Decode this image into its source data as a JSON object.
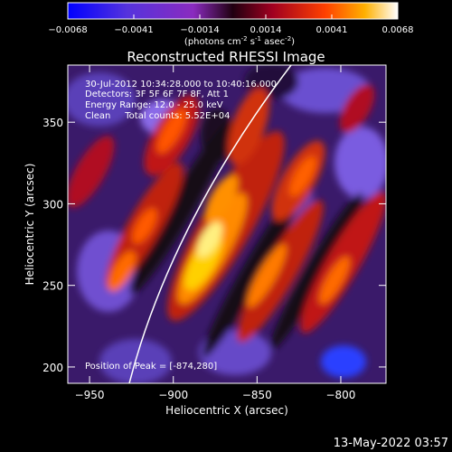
{
  "colorbar": {
    "ticks": [
      "-0.0068",
      "-0.0041",
      "-0.0014",
      "0.0014",
      "0.0041",
      "0.0068"
    ],
    "units_text": "(photons cm",
    "units_exp1": "-2",
    "units_mid": " s",
    "units_exp2": "-1",
    "units_end": " asec",
    "units_exp3": "-2",
    "units_close": ")"
  },
  "title": "Reconstructed RHESSI Image",
  "info": {
    "time_range": "30-Jul-2012 10:34:28.000 to 10:40:16.000",
    "detectors": "Detectors: 3F 5F 6F 7F 8F, Att 1",
    "energy": "Energy Range: 12.0 - 25.0 keV",
    "clean": "Clean     Total counts: 5.52E+04",
    "peak": "Position of Peak = [-874,280]"
  },
  "axes": {
    "xlabel": "Heliocentric X (arcsec)",
    "ylabel": "Heliocentric Y (arcsec)",
    "xticks": [
      -950,
      -900,
      -850,
      -800
    ],
    "yticks": [
      200,
      250,
      300,
      350
    ],
    "xrange": [
      -963,
      -773
    ],
    "yrange": [
      190,
      385
    ]
  },
  "timestamp": "13-May-2022 03:57",
  "colors": {
    "background": "#000000",
    "text": "#ffffff",
    "limb_line": "#ffffff"
  }
}
